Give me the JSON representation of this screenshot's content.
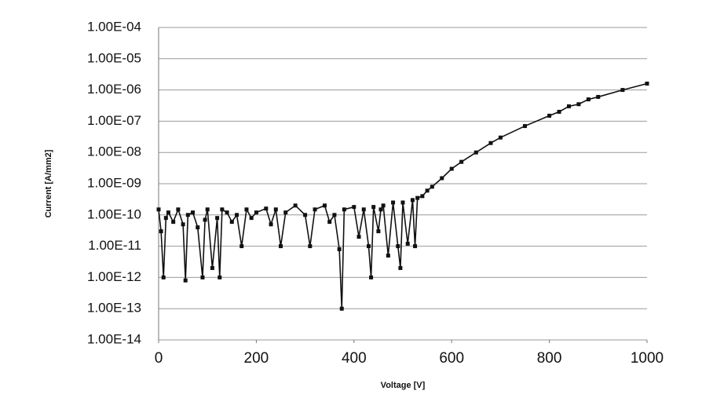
{
  "chart_data": {
    "type": "line",
    "x_label": "Voltage [V]",
    "y_label": "Current [A/mm2]",
    "x": [
      0,
      5,
      10,
      15,
      20,
      30,
      40,
      50,
      55,
      60,
      70,
      80,
      90,
      95,
      100,
      110,
      120,
      125,
      130,
      140,
      150,
      160,
      170,
      180,
      190,
      200,
      220,
      230,
      240,
      250,
      260,
      280,
      300,
      310,
      320,
      340,
      350,
      360,
      370,
      375,
      380,
      400,
      410,
      420,
      430,
      435,
      440,
      450,
      455,
      460,
      470,
      480,
      490,
      495,
      500,
      510,
      520,
      525,
      530,
      540,
      550,
      560,
      580,
      600,
      620,
      650,
      680,
      700,
      750,
      800,
      820,
      840,
      860,
      880,
      900,
      950,
      1000
    ],
    "values": [
      1.5e-10,
      3e-11,
      1e-12,
      8e-11,
      1.2e-10,
      6e-11,
      1.5e-10,
      5e-11,
      8e-13,
      1e-10,
      1.2e-10,
      4e-11,
      1e-12,
      7e-11,
      1.5e-10,
      2e-12,
      8e-11,
      1e-12,
      1.5e-10,
      1.2e-10,
      6e-11,
      1e-10,
      1e-11,
      1.5e-10,
      8e-11,
      1.2e-10,
      1.6e-10,
      5e-11,
      1.5e-10,
      1e-11,
      1.2e-10,
      2e-10,
      1e-10,
      1e-11,
      1.5e-10,
      2e-10,
      6e-11,
      1e-10,
      8e-12,
      1e-13,
      1.5e-10,
      1.8e-10,
      2e-11,
      1.5e-10,
      1e-11,
      1e-12,
      1.8e-10,
      3e-11,
      1.5e-10,
      2e-10,
      5e-12,
      2.5e-10,
      1e-11,
      2e-12,
      2.5e-10,
      1.2e-11,
      3e-10,
      1e-11,
      3.5e-10,
      4e-10,
      6e-10,
      8e-10,
      1.5e-09,
      3e-09,
      5e-09,
      1e-08,
      2e-08,
      3e-08,
      7e-08,
      1.5e-07,
      2e-07,
      3e-07,
      3.5e-07,
      5e-07,
      6e-07,
      1e-06,
      1.6e-06
    ],
    "color": "#111111",
    "xlim": [
      0,
      1000
    ],
    "xticks": [
      0,
      200,
      400,
      600,
      800,
      1000
    ],
    "ylim": [
      1e-14,
      0.0001
    ],
    "y_scale": "log",
    "yticks": [
      {
        "value": 1e-14,
        "label": "1.00E-14"
      },
      {
        "value": 1e-13,
        "label": "1.00E-13"
      },
      {
        "value": 1e-12,
        "label": "1.00E-12"
      },
      {
        "value": 1e-11,
        "label": "1.00E-11"
      },
      {
        "value": 1e-10,
        "label": "1.00E-10"
      },
      {
        "value": 1e-09,
        "label": "1.00E-09"
      },
      {
        "value": 1e-08,
        "label": "1.00E-08"
      },
      {
        "value": 1e-07,
        "label": "1.00E-07"
      },
      {
        "value": 1e-06,
        "label": "1.00E-06"
      },
      {
        "value": 1e-05,
        "label": "1.00E-05"
      },
      {
        "value": 0.0001,
        "label": "1.00E-04"
      }
    ],
    "grid": true
  }
}
